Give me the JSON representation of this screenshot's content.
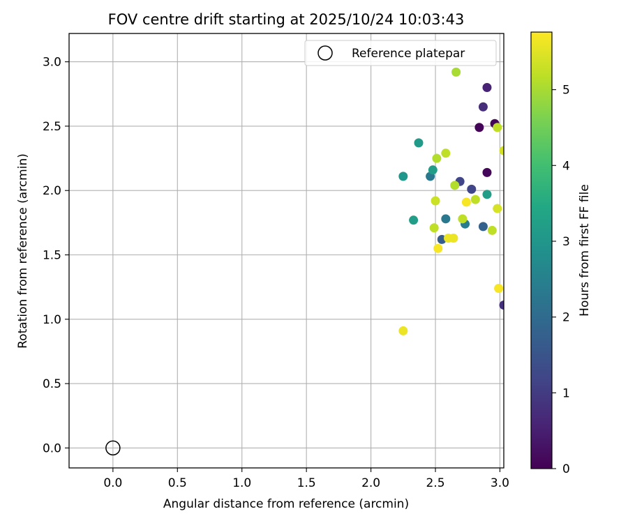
{
  "chart_data": {
    "type": "scatter",
    "title": "FOV centre drift starting at 2025/10/24 10:03:43",
    "xlabel": "Angular distance from reference (arcmin)",
    "ylabel": "Rotation from reference (arcmin)",
    "xlim": [
      -0.34,
      3.03
    ],
    "ylim": [
      -0.155,
      3.22
    ],
    "xticks": [
      0.0,
      0.5,
      1.0,
      1.5,
      2.0,
      2.5,
      3.0
    ],
    "xtick_labels": [
      "0.0",
      "0.5",
      "1.0",
      "1.5",
      "2.0",
      "2.5",
      "3.0"
    ],
    "yticks": [
      0.0,
      0.5,
      1.0,
      1.5,
      2.0,
      2.5,
      3.0
    ],
    "ytick_labels": [
      "0.0",
      "0.5",
      "1.0",
      "1.5",
      "2.0",
      "2.5",
      "3.0"
    ],
    "grid": true,
    "colormap": "viridis",
    "colorbar": {
      "label": "Hours from first FF file",
      "min": 0,
      "max": 5.76,
      "ticks": [
        0,
        1,
        2,
        3,
        4,
        5
      ],
      "tick_labels": [
        "0",
        "1",
        "2",
        "3",
        "4",
        "5"
      ]
    },
    "reference": {
      "label": "Reference platepar",
      "x": 0.0,
      "y": 0.0
    },
    "legend_position": "top-right",
    "points": [
      {
        "x": 2.84,
        "y": 2.49,
        "c": 0.05
      },
      {
        "x": 2.96,
        "y": 2.52,
        "c": 0.1
      },
      {
        "x": 2.9,
        "y": 2.14,
        "c": 0.1
      },
      {
        "x": 2.9,
        "y": 2.8,
        "c": 0.55
      },
      {
        "x": 2.87,
        "y": 2.65,
        "c": 0.75
      },
      {
        "x": 3.03,
        "y": 1.11,
        "c": 0.8
      },
      {
        "x": 2.69,
        "y": 2.07,
        "c": 1.2
      },
      {
        "x": 2.78,
        "y": 2.01,
        "c": 1.2
      },
      {
        "x": 2.55,
        "y": 1.62,
        "c": 1.7
      },
      {
        "x": 2.87,
        "y": 1.72,
        "c": 1.8
      },
      {
        "x": 2.46,
        "y": 2.11,
        "c": 2.3
      },
      {
        "x": 2.58,
        "y": 1.78,
        "c": 2.3
      },
      {
        "x": 2.73,
        "y": 1.74,
        "c": 2.4
      },
      {
        "x": 2.25,
        "y": 2.11,
        "c": 3.0
      },
      {
        "x": 2.37,
        "y": 2.37,
        "c": 3.1
      },
      {
        "x": 2.33,
        "y": 1.77,
        "c": 3.2
      },
      {
        "x": 2.48,
        "y": 2.16,
        "c": 3.2
      },
      {
        "x": 2.9,
        "y": 1.97,
        "c": 3.2
      },
      {
        "x": 2.66,
        "y": 2.92,
        "c": 5.0
      },
      {
        "x": 2.98,
        "y": 2.49,
        "c": 5.2
      },
      {
        "x": 2.51,
        "y": 2.25,
        "c": 5.1
      },
      {
        "x": 2.58,
        "y": 2.29,
        "c": 5.2
      },
      {
        "x": 2.65,
        "y": 2.04,
        "c": 5.1
      },
      {
        "x": 2.5,
        "y": 1.92,
        "c": 5.3
      },
      {
        "x": 2.81,
        "y": 1.93,
        "c": 5.2
      },
      {
        "x": 2.49,
        "y": 1.71,
        "c": 5.2
      },
      {
        "x": 2.71,
        "y": 1.78,
        "c": 5.2
      },
      {
        "x": 2.94,
        "y": 1.69,
        "c": 5.2
      },
      {
        "x": 2.98,
        "y": 1.86,
        "c": 5.4
      },
      {
        "x": 3.03,
        "y": 2.31,
        "c": 5.4
      },
      {
        "x": 2.52,
        "y": 1.55,
        "c": 5.7
      },
      {
        "x": 2.6,
        "y": 1.63,
        "c": 5.6
      },
      {
        "x": 2.64,
        "y": 1.63,
        "c": 5.6
      },
      {
        "x": 2.74,
        "y": 1.91,
        "c": 5.7
      },
      {
        "x": 2.99,
        "y": 1.24,
        "c": 5.7
      },
      {
        "x": 2.25,
        "y": 0.91,
        "c": 5.6
      }
    ]
  }
}
